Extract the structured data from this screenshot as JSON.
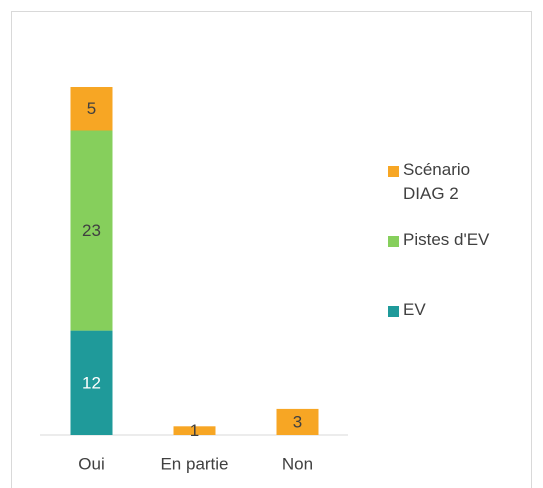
{
  "chart_data": {
    "type": "stacked_bar",
    "categories": [
      "Oui",
      "En partie",
      "Non"
    ],
    "series": [
      {
        "name": "EV",
        "color": "#1f9a9a",
        "values": [
          12,
          null,
          null
        ]
      },
      {
        "name": "Pistes d'EV",
        "color": "#86cf5c",
        "values": [
          23,
          null,
          null
        ]
      },
      {
        "name": "Scénario DIAG 2",
        "color": "#f7a624",
        "values": [
          5,
          1,
          3
        ]
      }
    ],
    "legend": "right"
  }
}
